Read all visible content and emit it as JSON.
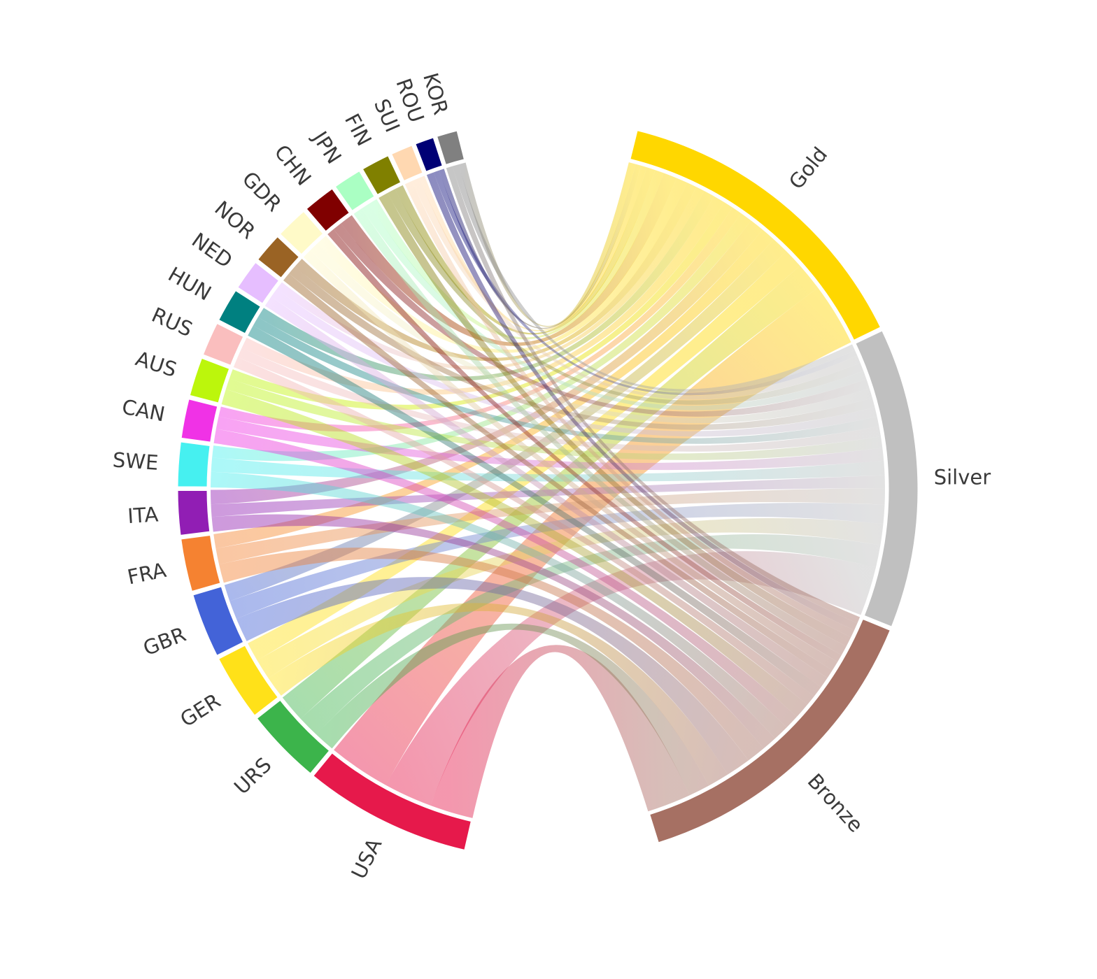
{
  "chart_data": {
    "type": "chord",
    "title": "",
    "description": "Chord diagram of Olympic medals by country (left arcs) linked to medal type (right arcs)",
    "medals": [
      {
        "name": "Gold",
        "color": "#FFD700"
      },
      {
        "name": "Silver",
        "color": "#C0C0C0"
      },
      {
        "name": "Bronze",
        "color": "#A67063"
      }
    ],
    "countries": [
      {
        "name": "USA",
        "color": "#E6194B",
        "gold": 1060,
        "silver": 830,
        "bronze": 740
      },
      {
        "name": "URS",
        "color": "#3CB44B",
        "gold": 470,
        "silver": 375,
        "bronze": 355
      },
      {
        "name": "GER",
        "color": "#FFE119",
        "gold": 330,
        "silver": 355,
        "bronze": 365
      },
      {
        "name": "GBR",
        "color": "#4363D8",
        "gold": 285,
        "silver": 320,
        "bronze": 415
      },
      {
        "name": "FRA",
        "color": "#F58231",
        "gold": 245,
        "silver": 275,
        "bronze": 320
      },
      {
        "name": "ITA",
        "color": "#911EB4",
        "gold": 245,
        "silver": 215,
        "bronze": 250
      },
      {
        "name": "SWE",
        "color": "#46F0F0",
        "gold": 205,
        "silver": 240,
        "bronze": 265
      },
      {
        "name": "CAN",
        "color": "#F032E6",
        "gold": 170,
        "silver": 215,
        "bronze": 245
      },
      {
        "name": "AUS",
        "color": "#BCF60C",
        "gold": 165,
        "silver": 190,
        "bronze": 265
      },
      {
        "name": "RUS",
        "color": "#FABEBE",
        "gold": 195,
        "silver": 170,
        "bronze": 180
      },
      {
        "name": "HUN",
        "color": "#008080",
        "gold": 185,
        "silver": 165,
        "bronze": 190
      },
      {
        "name": "NED",
        "color": "#E6BEFF",
        "gold": 145,
        "silver": 160,
        "bronze": 185
      },
      {
        "name": "NOR",
        "color": "#9A6324",
        "gold": 170,
        "silver": 160,
        "bronze": 150
      },
      {
        "name": "GDR",
        "color": "#FFFAC8",
        "gold": 190,
        "silver": 165,
        "bronze": 165
      },
      {
        "name": "CHN",
        "color": "#800000",
        "gold": 230,
        "silver": 160,
        "bronze": 130
      },
      {
        "name": "JPN",
        "color": "#AAFFC3",
        "gold": 150,
        "silver": 145,
        "bronze": 165
      },
      {
        "name": "FIN",
        "color": "#808000",
        "gold": 145,
        "silver": 145,
        "bronze": 170
      },
      {
        "name": "SUI",
        "color": "#FFD8B1",
        "gold": 100,
        "silver": 130,
        "bronze": 130
      },
      {
        "name": "ROU",
        "color": "#000075",
        "gold": 90,
        "silver": 95,
        "bronze": 125
      },
      {
        "name": "KOR",
        "color": "#808080",
        "gold": 120,
        "silver": 110,
        "bronze": 110
      }
    ],
    "layout": {
      "center": [
        783,
        700
      ],
      "outer_radius": 530,
      "arc_thickness": 44,
      "ribbon_radius": 482,
      "label_radius": 552,
      "countries_arc_deg": [
        102.9,
        255.9
      ],
      "medals_arc_deg": [
        -76.1,
        72.7
      ],
      "group_pad_deg": 0.4,
      "ribbon_opacity": 0.45
    }
  },
  "labels": {
    "gold": "Gold",
    "silver": "Silver",
    "bronze": "Bronze"
  }
}
